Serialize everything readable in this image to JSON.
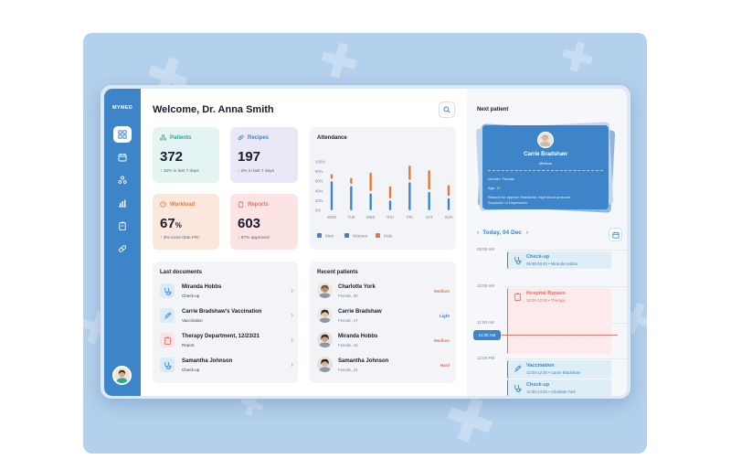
{
  "colors": {
    "accent": "#3d85c8",
    "teal": "#2aa79b",
    "orange": "#e4773a",
    "red": "#e86a6a",
    "purple": "#5e5cb3"
  },
  "sidebar": {
    "logo": "MYMED",
    "items": [
      {
        "icon": "dashboard-icon",
        "active": true
      },
      {
        "icon": "calendar-icon",
        "active": false
      },
      {
        "icon": "users-icon",
        "active": false
      },
      {
        "icon": "chart-icon",
        "active": false
      },
      {
        "icon": "clipboard-icon",
        "active": false
      },
      {
        "icon": "pill-icon",
        "active": false
      }
    ]
  },
  "header": {
    "welcome": "Welcome, Dr. Anna Smith"
  },
  "stats": [
    {
      "label": "Patients",
      "value": "372",
      "unit": "",
      "sub": "↑ 15% in last 7 days",
      "icon": "patients-icon"
    },
    {
      "label": "Recipes",
      "value": "197",
      "unit": "",
      "sub": "↓ 2% in last 7 days",
      "icon": "pill-icon"
    },
    {
      "label": "Workload",
      "value": "67",
      "unit": "%",
      "sub": "↑ 3% more than FRI",
      "icon": "gauge-icon"
    },
    {
      "label": "Reports",
      "value": "603",
      "unit": "",
      "sub": "↑ 97% approved",
      "icon": "report-icon"
    }
  ],
  "attendance": {
    "title": "Attendance"
  },
  "chart_data": {
    "type": "bar",
    "title": "Attendance",
    "categories": [
      "MON",
      "TUE",
      "WED",
      "THU",
      "FRI",
      "SAT",
      "SUN"
    ],
    "yticks": [
      "0%",
      "20%",
      "40%",
      "60%",
      "80%",
      "100%"
    ],
    "ylim": [
      0,
      100
    ],
    "series": [
      {
        "name": "Men",
        "color": "#3d85c8",
        "values": [
          60,
          50,
          35,
          20,
          58,
          38,
          25
        ]
      },
      {
        "name": "Women",
        "color": "#e4773a",
        "values": [
          10,
          12,
          38,
          25,
          30,
          40,
          22
        ]
      },
      {
        "name": "Kids",
        "color": "#e4773a",
        "values": [
          0,
          0,
          0,
          0,
          0,
          0,
          0
        ]
      }
    ],
    "legend": [
      "Men",
      "Women",
      "Kids"
    ],
    "legend_placement": "bottom"
  },
  "documents": {
    "title": "Last documents",
    "items": [
      {
        "name": "Miranda Hobbs",
        "type": "Check-up",
        "icon": "stethoscope-icon",
        "tone": "blue"
      },
      {
        "name": "Carrie Bradshaw's Vaccination",
        "type": "Vaccination",
        "icon": "syringe-icon",
        "tone": "blue"
      },
      {
        "name": "Therapy Department, 12/23/21",
        "type": "Report",
        "icon": "clipboard-icon",
        "tone": "red"
      },
      {
        "name": "Samantha Johnson",
        "type": "Check-up",
        "icon": "stethoscope-icon",
        "tone": "blue"
      }
    ]
  },
  "recent_patients": {
    "title": "Recent patients",
    "items": [
      {
        "name": "Charlotte York",
        "sub": "Female, 30",
        "badge": "Medium",
        "tone": "#e4773a"
      },
      {
        "name": "Carrie Bradshaw",
        "sub": "Female, 17",
        "badge": "Light",
        "tone": "#3d85c8"
      },
      {
        "name": "Miranda Hobbs",
        "sub": "Female, 42",
        "badge": "Medium",
        "tone": "#e4773a"
      },
      {
        "name": "Samantha Johnson",
        "sub": "Female, 24",
        "badge": "Hard",
        "tone": "#e86a6a"
      }
    ]
  },
  "next_patient": {
    "title": "Next patient",
    "name": "Carrie Bradshaw",
    "level": "Medium",
    "gender": "Gender: Female",
    "age": "Age: 17",
    "reason_1": "Reason for appeal: Headache, high blood pressure",
    "reason_2": "Suspicion of Depression"
  },
  "schedule": {
    "date": "Today, 04 Dec",
    "prev": "‹",
    "next": "›",
    "times": [
      "09:00 AM",
      "10:00 AM",
      "11:00 AM",
      "12:00 PM"
    ],
    "now": "11:30 AM",
    "events": [
      {
        "title": "Check-up",
        "time": "09:30-09:40 • Miranda Hobbs",
        "icon": "stethoscope-icon",
        "tone": "blue"
      },
      {
        "title": "Hospital Bypass",
        "time": "10:00-12:30 • Therapy",
        "icon": "clipboard-icon",
        "tone": "red"
      },
      {
        "title": "Vaccination",
        "time": "12:00-12:30 • Carrie Bradshaw",
        "icon": "syringe-icon",
        "tone": "blue"
      },
      {
        "title": "Check-up",
        "time": "12:30-14:00 • Charlotte York",
        "icon": "stethoscope-icon",
        "tone": "blue"
      }
    ]
  }
}
